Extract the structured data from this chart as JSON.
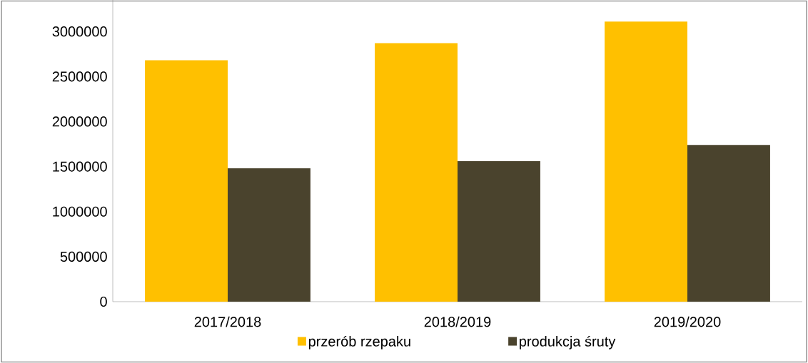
{
  "chart_data": {
    "type": "bar",
    "categories": [
      "2017/2018",
      "2018/2019",
      "2019/2020"
    ],
    "series": [
      {
        "name": "przerób rzepaku",
        "color": "#ffc000",
        "values": [
          2680000,
          2870000,
          3110000
        ]
      },
      {
        "name": "produkcja śruty",
        "color": "#4a432d",
        "values": [
          1480000,
          1560000,
          1740000
        ]
      }
    ],
    "ylim": [
      0,
      3350000
    ],
    "yticks": [
      0,
      500000,
      1000000,
      1500000,
      2000000,
      2500000,
      3000000
    ],
    "legend": "bottom"
  }
}
